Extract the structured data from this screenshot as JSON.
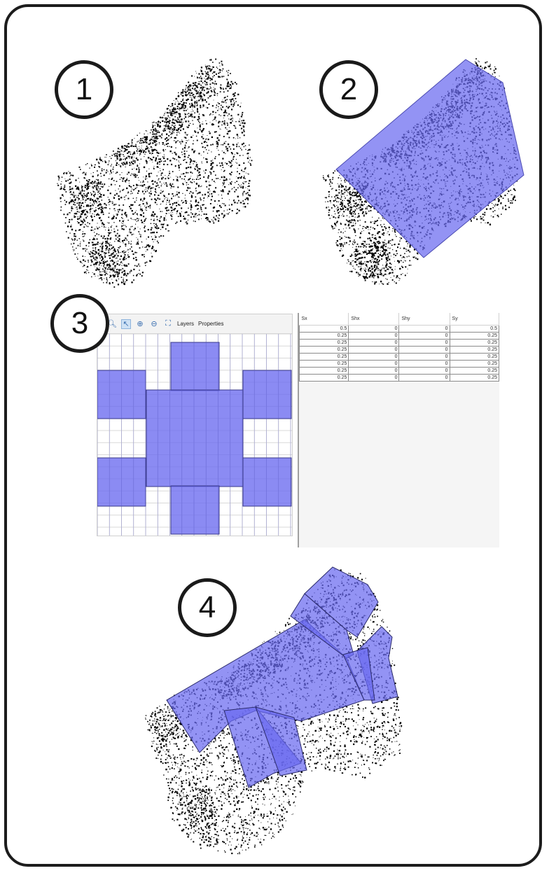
{
  "steps": [
    "1",
    "2",
    "3",
    "4"
  ],
  "colors": {
    "overlay": "#6a6af0",
    "overlay_stroke": "#4a4ab0",
    "dots": "#000000",
    "frame": "#1c1c1c"
  },
  "grid_panel": {
    "toolbar": {
      "icons": [
        "zoom-icon",
        "select-arrow-icon",
        "zoom-in-icon",
        "zoom-out-icon",
        "full-extent-icon"
      ],
      "layers_label": "Layers",
      "properties_label": "Properties"
    }
  },
  "matrix_table": {
    "headers": [
      "Sx",
      "Shx",
      "Shy",
      "Sy"
    ],
    "rows": [
      [
        "0.5",
        "0",
        "0",
        "0.5"
      ],
      [
        "0.25",
        "0",
        "0",
        "0.25"
      ],
      [
        "0.25",
        "0",
        "0",
        "0.25"
      ],
      [
        "0.25",
        "0",
        "0",
        "0.25"
      ],
      [
        "0.25",
        "0",
        "0",
        "0.25"
      ],
      [
        "0.25",
        "0",
        "0",
        "0.25"
      ],
      [
        "0.25",
        "0",
        "0",
        "0.25"
      ],
      [
        "0.25",
        "0",
        "0",
        "0.25"
      ]
    ]
  }
}
